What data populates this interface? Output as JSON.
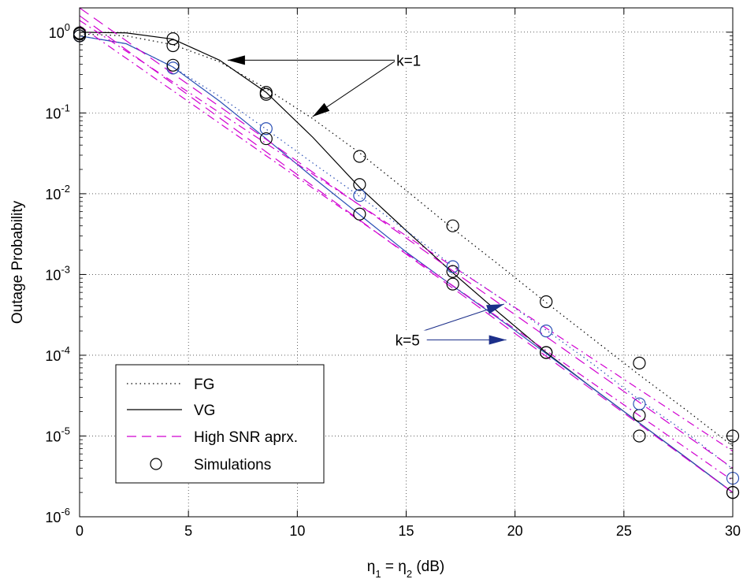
{
  "chart_data": {
    "type": "line",
    "title": "",
    "xlabel": "η1 = η2 (dB)",
    "xlabel_parts": {
      "eta": "η",
      "sub1": "1",
      "eq": " = ",
      "sub2": "2",
      "unit": " (dB)"
    },
    "ylabel": "Outage Probability",
    "xlim": [
      0,
      30
    ],
    "ylim": [
      1e-06,
      2
    ],
    "yscale": "log",
    "grid": true,
    "x_ticks": [
      0,
      5,
      10,
      15,
      20,
      25,
      30
    ],
    "y_ticks": [
      {
        "value": 1,
        "base": "10",
        "exp": "0"
      },
      {
        "value": 0.1,
        "base": "10",
        "exp": "-1"
      },
      {
        "value": 0.01,
        "base": "10",
        "exp": "-2"
      },
      {
        "value": 0.001,
        "base": "10",
        "exp": "-3"
      },
      {
        "value": 0.0001,
        "base": "10",
        "exp": "-4"
      },
      {
        "value": 1e-05,
        "base": "10",
        "exp": "-5"
      },
      {
        "value": 1e-06,
        "base": "10",
        "exp": "-6"
      }
    ],
    "legend": {
      "position": "bottom-left",
      "entries": [
        {
          "label": "FG",
          "style": "dotted"
        },
        {
          "label": "VG",
          "style": "solid"
        },
        {
          "label": "High SNR aprx.",
          "style": "dashed"
        },
        {
          "label": "Simulations",
          "style": "marker"
        }
      ]
    },
    "colors": {
      "black": "#000000",
      "blue": "#2a4fb5",
      "magenta": "#d100d1",
      "arrow_blue": "#1c2f8a"
    },
    "series": [
      {
        "group": "k1",
        "style": "dotted",
        "color": "#000000",
        "x": [
          0,
          2.14,
          4.29,
          6.43,
          8.57,
          10.71,
          12.86,
          15.0,
          17.14,
          19.29,
          21.43,
          23.57,
          25.71,
          27.86,
          30
        ],
        "y": [
          0.95,
          0.9,
          0.7,
          0.43,
          0.2,
          0.085,
          0.032,
          0.011,
          0.0037,
          0.0013,
          0.00045,
          0.00016,
          5.7e-05,
          2.1e-05,
          7.5e-06
        ]
      },
      {
        "group": "k1",
        "style": "solid",
        "color": "#000000",
        "x": [
          0,
          2.14,
          4.29,
          6.43,
          8.57,
          10.71,
          12.86,
          15.0,
          17.14,
          19.29,
          21.43,
          23.57,
          25.71,
          27.86,
          30
        ],
        "y": [
          1.0,
          0.98,
          0.82,
          0.45,
          0.18,
          0.05,
          0.012,
          0.0035,
          0.00105,
          0.00033,
          0.000108,
          3.9e-05,
          1.45e-05,
          5.4e-06,
          2e-06
        ]
      },
      {
        "group": "k5",
        "style": "dotted",
        "color": "#2a4fb5",
        "x": [
          0,
          2.14,
          4.29,
          6.43,
          8.57,
          10.71,
          12.86,
          15.0,
          17.14,
          19.29,
          21.43,
          23.57,
          25.71,
          27.86,
          30
        ],
        "y": [
          0.9,
          0.72,
          0.37,
          0.16,
          0.063,
          0.024,
          0.0093,
          0.0035,
          0.00128,
          0.00052,
          0.000205,
          7.8e-05,
          2.8e-05,
          1.1e-05,
          3.9e-06
        ]
      },
      {
        "group": "k5",
        "style": "solid",
        "color": "#2a4fb5",
        "x": [
          0,
          2.14,
          4.29,
          6.43,
          8.57,
          10.71,
          12.86,
          15.0,
          17.14,
          19.29,
          21.43,
          23.57,
          25.71,
          27.86,
          30
        ],
        "y": [
          0.9,
          0.72,
          0.37,
          0.14,
          0.048,
          0.016,
          0.0055,
          0.0019,
          0.00072,
          0.00028,
          0.000105,
          3.9e-05,
          1.45e-05,
          5.4e-06,
          2e-06
        ]
      },
      {
        "group": "k1",
        "style": "dashed",
        "color": "#d100d1",
        "x": [
          0,
          30
        ],
        "y": [
          2.0,
          4e-06
        ]
      },
      {
        "group": "k1",
        "style": "dashdot",
        "color": "#d100d1",
        "x": [
          0,
          30
        ],
        "y": [
          1.4,
          6.5e-06
        ]
      },
      {
        "group": "k5",
        "style": "dashed",
        "color": "#d100d1",
        "x": [
          0,
          30
        ],
        "y": [
          1.6,
          2e-06
        ]
      },
      {
        "group": "k5",
        "style": "dashdot",
        "color": "#d100d1",
        "x": [
          0,
          30
        ],
        "y": [
          1.2,
          2.8e-06
        ]
      }
    ],
    "simulations": [
      {
        "color": "#000000",
        "x": [
          0,
          4.29,
          8.57,
          12.86,
          17.14,
          21.43,
          25.71,
          30
        ],
        "y": [
          0.95,
          0.68,
          0.17,
          0.029,
          0.004,
          0.00046,
          8e-05,
          1e-05
        ]
      },
      {
        "color": "#000000",
        "x": [
          0,
          4.29,
          8.57,
          12.86,
          17.14,
          21.43,
          25.71,
          30
        ],
        "y": [
          0.98,
          0.83,
          0.18,
          0.013,
          0.00109,
          0.000108,
          1.8e-05,
          2e-06
        ]
      },
      {
        "color": "#2a4fb5",
        "x": [
          0,
          4.29,
          8.57,
          12.86,
          17.14,
          21.43,
          25.71,
          30
        ],
        "y": [
          0.9,
          0.36,
          0.064,
          0.0095,
          0.00125,
          0.0002,
          2.5e-05,
          3e-06
        ]
      },
      {
        "color": "#000000",
        "x": [
          0,
          4.29,
          8.57,
          12.86,
          17.14,
          21.43,
          25.71,
          30
        ],
        "y": [
          0.9,
          0.39,
          0.048,
          0.0056,
          0.00076,
          0.000108,
          1e-05,
          2e-06
        ]
      }
    ],
    "annotations": [
      {
        "text": "k=1",
        "color": "#000000",
        "text_at": [
          14.55,
          0.45
        ],
        "arrows": [
          {
            "from": [
              14.55,
              0.45
            ],
            "to": [
              6.8,
              0.45
            ]
          },
          {
            "from": [
              14.55,
              0.45
            ],
            "to": [
              10.7,
              0.09
            ]
          }
        ]
      },
      {
        "text": "k=5",
        "color": "#1c2f8a",
        "text_at": [
          14.5,
          0.000155
        ],
        "arrows": [
          {
            "from": [
              14.55,
              0.000155
            ],
            "to": [
              19.5,
              0.00043
            ]
          },
          {
            "from": [
              14.55,
              0.000155
            ],
            "to": [
              19.6,
              0.000155
            ]
          }
        ]
      }
    ]
  }
}
